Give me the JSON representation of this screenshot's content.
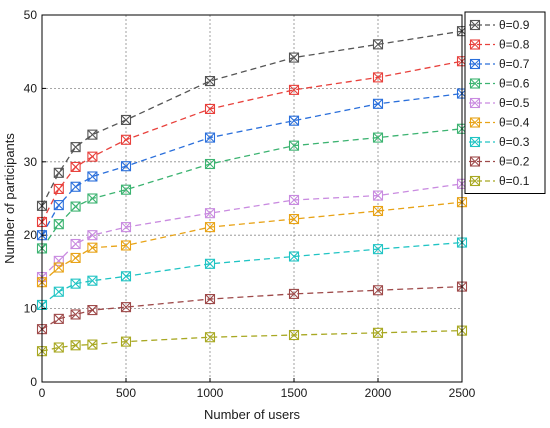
{
  "chart_data": {
    "type": "line",
    "title": "",
    "xlabel": "Number of users",
    "ylabel": "Number of participants",
    "xlim": [
      0,
      2500
    ],
    "ylim": [
      0,
      50
    ],
    "xticks": [
      "0",
      "500",
      "1000",
      "1500",
      "2000",
      "2500"
    ],
    "yticks": [
      "0",
      "10",
      "20",
      "30",
      "40",
      "50"
    ],
    "grid": true,
    "legend_position": "top-right, outside plot area",
    "x": [
      0,
      100,
      200,
      300,
      500,
      1000,
      1500,
      2000,
      2500
    ],
    "series": [
      {
        "name": "θ=0.9",
        "color": "#555555",
        "values": [
          24.0,
          28.5,
          32.0,
          33.7,
          35.7,
          41.0,
          44.2,
          46.0,
          47.8
        ]
      },
      {
        "name": "θ=0.8",
        "color": "#e8413c",
        "values": [
          21.8,
          26.3,
          29.3,
          30.7,
          33.0,
          37.2,
          39.8,
          41.5,
          43.7
        ]
      },
      {
        "name": "θ=0.7",
        "color": "#2a6fdb",
        "values": [
          20.0,
          24.1,
          26.6,
          28.0,
          29.4,
          33.3,
          35.6,
          37.9,
          39.3
        ]
      },
      {
        "name": "θ=0.6",
        "color": "#3cb371",
        "values": [
          18.2,
          21.5,
          23.9,
          25.0,
          26.2,
          29.7,
          32.2,
          33.3,
          34.5
        ]
      },
      {
        "name": "θ=0.5",
        "color": "#c98be0",
        "values": [
          14.3,
          16.5,
          18.8,
          20.0,
          21.1,
          23.0,
          24.8,
          25.4,
          27.0
        ]
      },
      {
        "name": "θ=0.4",
        "color": "#e8a317",
        "values": [
          13.6,
          15.6,
          16.9,
          18.3,
          18.6,
          21.1,
          22.2,
          23.3,
          24.5
        ]
      },
      {
        "name": "θ=0.3",
        "color": "#20c4c4",
        "values": [
          10.5,
          12.3,
          13.4,
          13.8,
          14.4,
          16.1,
          17.1,
          18.1,
          19.0
        ]
      },
      {
        "name": "θ=0.2",
        "color": "#9e4a4a",
        "values": [
          7.2,
          8.6,
          9.2,
          9.8,
          10.2,
          11.3,
          12.0,
          12.5,
          13.0
        ]
      },
      {
        "name": "θ=0.1",
        "color": "#a8a822",
        "values": [
          4.2,
          4.7,
          5.0,
          5.1,
          5.5,
          6.1,
          6.4,
          6.7,
          7.0
        ]
      }
    ]
  }
}
